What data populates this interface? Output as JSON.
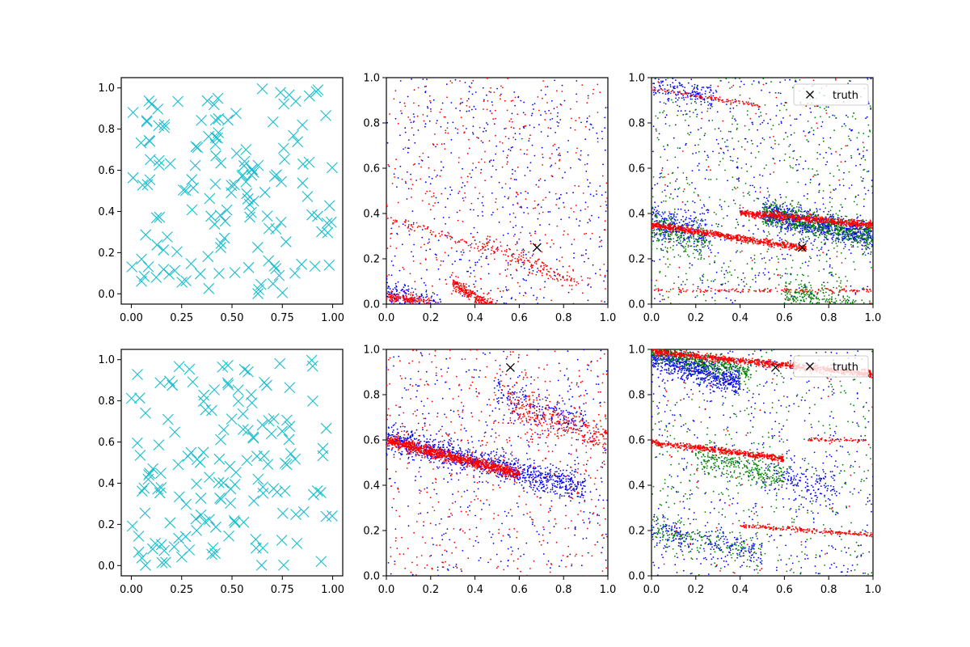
{
  "figure": {
    "title": ""
  },
  "colors": {
    "cyan": "#17becf",
    "blue": "#0000ff",
    "red": "#ff0000",
    "green": "#008000",
    "black": "#000000"
  },
  "chart_data": [
    {
      "id": "top-left",
      "type": "scatter",
      "title": "",
      "xlabel": "",
      "ylabel": "",
      "xlim": [
        -0.05,
        1.05
      ],
      "ylim": [
        -0.05,
        1.05
      ],
      "xticks": [
        "0.00",
        "0.25",
        "0.50",
        "0.75",
        "1.00"
      ],
      "xtick_values": [
        0,
        0.25,
        0.5,
        0.75,
        1.0
      ],
      "yticks": [
        "0.0",
        "0.2",
        "0.4",
        "0.6",
        "0.8",
        "1.0"
      ],
      "ytick_values": [
        0,
        0.2,
        0.4,
        0.6,
        0.8,
        1.0
      ],
      "series": [
        {
          "name": "samples",
          "marker": "x",
          "color": "#17becf",
          "n": 150,
          "distribution": "uniform",
          "seed": 11
        }
      ],
      "legend": null
    },
    {
      "id": "top-middle",
      "type": "scatter",
      "title": "",
      "xlabel": "",
      "ylabel": "",
      "xlim": [
        0,
        1
      ],
      "ylim": [
        0,
        1
      ],
      "xticks": [
        "0.0",
        "0.2",
        "0.4",
        "0.6",
        "0.8",
        "1.0"
      ],
      "xtick_values": [
        0,
        0.2,
        0.4,
        0.6,
        0.8,
        1.0
      ],
      "yticks": [
        "0.0",
        "0.2",
        "0.4",
        "0.6",
        "0.8",
        "1.0"
      ],
      "ytick_values": [
        0,
        0.2,
        0.4,
        0.6,
        0.8,
        1.0
      ],
      "series": [
        {
          "name": "blue",
          "color": "#0000ff",
          "seed": 21,
          "noise": 500,
          "bands": [
            {
              "x": [
                0.5,
                1.0
              ],
              "y0": 0.25,
              "slope": -0.6,
              "spread": 0.04,
              "n": 1000
            },
            {
              "x": [
                0.0,
                0.25
              ],
              "y0": 0.05,
              "slope": -0.2,
              "spread": 0.03,
              "n": 150
            }
          ]
        },
        {
          "name": "red",
          "color": "#ff0000",
          "seed": 22,
          "noise": 400,
          "bands": [
            {
              "x": [
                0.3,
                1.0
              ],
              "y0": 0.27,
              "slope": -0.6,
              "spread": 0.015,
              "n": 900
            },
            {
              "x": [
                0.0,
                0.2
              ],
              "y0": 0.03,
              "slope": -0.1,
              "spread": 0.01,
              "n": 150
            },
            {
              "x": [
                0.45,
                0.85
              ],
              "y0": 0.44,
              "slope": -0.4,
              "spread": 0.02,
              "n": 150
            },
            {
              "x": [
                0.0,
                0.45
              ],
              "y0": 0.38,
              "slope": -0.3,
              "spread": 0.01,
              "n": 80
            }
          ]
        }
      ],
      "truth": {
        "x": 0.68,
        "y": 0.25,
        "label": "truth"
      },
      "legend": null
    },
    {
      "id": "top-right",
      "type": "scatter",
      "title": "",
      "xlabel": "",
      "ylabel": "",
      "xlim": [
        0,
        1
      ],
      "ylim": [
        0,
        1
      ],
      "xticks": [
        "0.0",
        "0.2",
        "0.4",
        "0.6",
        "0.8",
        "1.0"
      ],
      "xtick_values": [
        0,
        0.2,
        0.4,
        0.6,
        0.8,
        1.0
      ],
      "yticks": [
        "0.0",
        "0.2",
        "0.4",
        "0.6",
        "0.8",
        "1.0"
      ],
      "ytick_values": [
        0,
        0.2,
        0.4,
        0.6,
        0.8,
        1.0
      ],
      "series": [
        {
          "name": "blue",
          "color": "#0000ff",
          "seed": 31,
          "noise": 500,
          "bands": [
            {
              "x": [
                0.5,
                1.0
              ],
              "y0": 0.5,
              "slope": -0.2,
              "spread": 0.03,
              "n": 800
            },
            {
              "x": [
                0.0,
                0.25
              ],
              "y0": 0.36,
              "slope": -0.2,
              "spread": 0.04,
              "n": 250
            },
            {
              "x": [
                0.0,
                0.3
              ],
              "y0": 0.95,
              "slope": -0.1,
              "spread": 0.03,
              "n": 150
            }
          ]
        },
        {
          "name": "green",
          "color": "#008000",
          "seed": 32,
          "noise": 500,
          "bands": [
            {
              "x": [
                0.5,
                1.0
              ],
              "y0": 0.5,
              "slope": -0.2,
              "spread": 0.03,
              "n": 600
            },
            {
              "x": [
                0.6,
                1.0
              ],
              "y0": 0.24,
              "slope": -0.3,
              "spread": 0.04,
              "n": 400
            },
            {
              "x": [
                0.0,
                0.25
              ],
              "y0": 0.33,
              "slope": -0.2,
              "spread": 0.04,
              "n": 200
            }
          ]
        },
        {
          "name": "red",
          "color": "#ff0000",
          "seed": 33,
          "noise": 100,
          "bands": [
            {
              "x": [
                0.0,
                0.7
              ],
              "y0": 0.35,
              "slope": -0.15,
              "spread": 0.007,
              "n": 700
            },
            {
              "x": [
                0.4,
                1.0
              ],
              "y0": 0.44,
              "slope": -0.09,
              "spread": 0.008,
              "n": 600
            },
            {
              "x": [
                0.0,
                1.0
              ],
              "y0": 0.06,
              "slope": 0.0,
              "spread": 0.005,
              "n": 150
            },
            {
              "x": [
                0.0,
                0.5
              ],
              "y0": 0.95,
              "slope": -0.15,
              "spread": 0.005,
              "n": 100
            },
            {
              "x": [
                0.75,
                1.0
              ],
              "y0": 0.28,
              "slope": -0.5,
              "spread": 0.008,
              "n": 150
            }
          ]
        }
      ],
      "truth": {
        "x": 0.68,
        "y": 0.25,
        "label": "truth"
      },
      "legend": {
        "entries": [
          "truth"
        ],
        "loc": "upper right"
      }
    },
    {
      "id": "bottom-left",
      "type": "scatter",
      "title": "",
      "xlabel": "",
      "ylabel": "",
      "xlim": [
        -0.05,
        1.05
      ],
      "ylim": [
        -0.05,
        1.05
      ],
      "xticks": [
        "0.00",
        "0.25",
        "0.50",
        "0.75",
        "1.00"
      ],
      "xtick_values": [
        0,
        0.25,
        0.5,
        0.75,
        1.0
      ],
      "yticks": [
        "0.0",
        "0.2",
        "0.4",
        "0.6",
        "0.8",
        "1.0"
      ],
      "ytick_values": [
        0,
        0.2,
        0.4,
        0.6,
        0.8,
        1.0
      ],
      "series": [
        {
          "name": "samples",
          "marker": "x",
          "color": "#17becf",
          "n": 150,
          "distribution": "uniform",
          "seed": 12
        }
      ],
      "legend": null
    },
    {
      "id": "bottom-middle",
      "type": "scatter",
      "title": "",
      "xlabel": "",
      "ylabel": "",
      "xlim": [
        0,
        1
      ],
      "ylim": [
        0,
        1
      ],
      "xticks": [
        "0.0",
        "0.2",
        "0.4",
        "0.6",
        "0.8",
        "1.0"
      ],
      "xtick_values": [
        0,
        0.2,
        0.4,
        0.6,
        0.8,
        1.0
      ],
      "yticks": [
        "0.0",
        "0.2",
        "0.4",
        "0.6",
        "0.8",
        "1.0"
      ],
      "ytick_values": [
        0,
        0.2,
        0.4,
        0.6,
        0.8,
        1.0
      ],
      "series": [
        {
          "name": "blue",
          "color": "#0000ff",
          "seed": 41,
          "noise": 400,
          "bands": [
            {
              "x": [
                0.0,
                0.9
              ],
              "y0": 0.61,
              "slope": -0.25,
              "spread": 0.03,
              "n": 1000
            },
            {
              "x": [
                0.5,
                0.9
              ],
              "y0": 0.95,
              "slope": -0.3,
              "spread": 0.04,
              "n": 200
            }
          ]
        },
        {
          "name": "red",
          "color": "#ff0000",
          "seed": 42,
          "noise": 500,
          "bands": [
            {
              "x": [
                0.0,
                0.6
              ],
              "y0": 0.6,
              "slope": -0.25,
              "spread": 0.012,
              "n": 900
            },
            {
              "x": [
                0.55,
                1.0
              ],
              "y0": 0.95,
              "slope": -0.35,
              "spread": 0.04,
              "n": 300
            },
            {
              "x": [
                0.0,
                0.55
              ],
              "y0": 0.58,
              "slope": -0.2,
              "spread": 0.015,
              "n": 150
            }
          ]
        }
      ],
      "truth": {
        "x": 0.56,
        "y": 0.92,
        "label": "truth"
      },
      "legend": null
    },
    {
      "id": "bottom-right",
      "type": "scatter",
      "title": "",
      "xlabel": "",
      "ylabel": "",
      "xlim": [
        0,
        1
      ],
      "ylim": [
        0,
        1
      ],
      "xticks": [
        "0.0",
        "0.2",
        "0.4",
        "0.6",
        "0.8",
        "1.0"
      ],
      "xtick_values": [
        0,
        0.2,
        0.4,
        0.6,
        0.8,
        1.0
      ],
      "yticks": [
        "0.0",
        "0.2",
        "0.4",
        "0.6",
        "0.8",
        "1.0"
      ],
      "ytick_values": [
        0,
        0.2,
        0.4,
        0.6,
        0.8,
        1.0
      ],
      "series": [
        {
          "name": "blue",
          "color": "#0000ff",
          "seed": 51,
          "noise": 500,
          "bands": [
            {
              "x": [
                0.0,
                0.4
              ],
              "y0": 0.97,
              "slope": -0.3,
              "spread": 0.03,
              "n": 700
            },
            {
              "x": [
                0.0,
                0.5
              ],
              "y0": 0.2,
              "slope": -0.2,
              "spread": 0.03,
              "n": 200
            },
            {
              "x": [
                0.55,
                0.85
              ],
              "y0": 0.55,
              "slope": -0.2,
              "spread": 0.05,
              "n": 150
            }
          ]
        },
        {
          "name": "green",
          "color": "#008000",
          "seed": 52,
          "noise": 400,
          "bands": [
            {
              "x": [
                0.0,
                0.45
              ],
              "y0": 0.99,
              "slope": -0.2,
              "spread": 0.02,
              "n": 400
            },
            {
              "x": [
                0.2,
                0.6
              ],
              "y0": 0.58,
              "slope": -0.25,
              "spread": 0.03,
              "n": 300
            },
            {
              "x": [
                0.0,
                0.5
              ],
              "y0": 0.2,
              "slope": -0.2,
              "spread": 0.03,
              "n": 150
            }
          ]
        },
        {
          "name": "red",
          "color": "#ff0000",
          "seed": 53,
          "noise": 80,
          "bands": [
            {
              "x": [
                0.0,
                1.0
              ],
              "y0": 0.99,
              "slope": -0.1,
              "spread": 0.007,
              "n": 900
            },
            {
              "x": [
                0.0,
                0.6
              ],
              "y0": 0.59,
              "slope": -0.12,
              "spread": 0.007,
              "n": 500
            },
            {
              "x": [
                0.7,
                1.0
              ],
              "y0": 0.6,
              "slope": 0.0,
              "spread": 0.005,
              "n": 60
            },
            {
              "x": [
                0.4,
                1.0
              ],
              "y0": 0.25,
              "slope": -0.07,
              "spread": 0.005,
              "n": 200
            }
          ]
        }
      ],
      "truth": {
        "x": 0.56,
        "y": 0.92,
        "label": "truth"
      },
      "legend": {
        "entries": [
          "truth"
        ],
        "loc": "upper right"
      }
    }
  ]
}
